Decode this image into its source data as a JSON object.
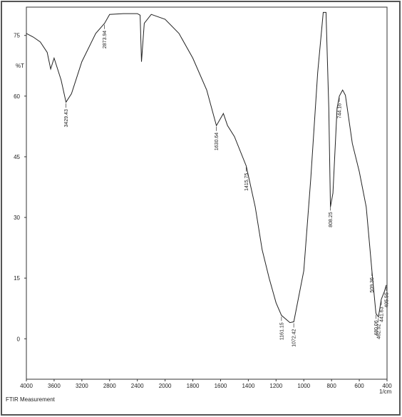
{
  "chart_data": {
    "type": "line",
    "xlabel": "1/cm",
    "ylabel": "%T",
    "note": "FTIR Measurement",
    "x": [
      4000,
      3900,
      3800,
      3700,
      3650,
      3600,
      3500,
      3429,
      3350,
      3200,
      3000,
      2873,
      2800,
      2600,
      2400,
      2360,
      2340,
      2300,
      2200,
      2000,
      1900,
      1800,
      1700,
      1630,
      1580,
      1550,
      1500,
      1415,
      1350,
      1300,
      1250,
      1200,
      1161,
      1100,
      1072,
      1000,
      950,
      900,
      860,
      840,
      820,
      808,
      790,
      760,
      744,
      720,
      700,
      650,
      600,
      550,
      509,
      480,
      462,
      441,
      420,
      405
    ],
    "values": [
      75.5,
      74.6,
      73.4,
      70.8,
      66.7,
      69.4,
      64,
      58.5,
      60.6,
      68.5,
      75.5,
      78,
      80.2,
      80.4,
      80.4,
      80,
      68.5,
      78,
      80.2,
      79,
      75.5,
      69.4,
      61.5,
      52.7,
      55.7,
      52.7,
      50,
      42.7,
      32.6,
      22,
      15,
      8.9,
      5.8,
      4,
      4.2,
      16.8,
      39.6,
      65.8,
      80.7,
      80.7,
      57,
      32.6,
      36,
      57,
      60,
      61.5,
      60.2,
      48.3,
      41.3,
      32.6,
      16.8,
      6.3,
      5.4,
      9.8,
      11.6,
      13.3
    ],
    "color": "#222222",
    "xlim": [
      4000,
      400
    ],
    "xticks": [
      4000,
      3600,
      3200,
      2800,
      2400,
      2000,
      1800,
      1600,
      1400,
      1200,
      1000,
      800,
      600,
      400
    ],
    "ylim": [
      -10,
      82
    ],
    "yticks": [
      0,
      15,
      30,
      45,
      60,
      75
    ],
    "annotations": [
      {
        "x": 3429.43,
        "label": "3429.43"
      },
      {
        "x": 2873.94,
        "label": "2873.94"
      },
      {
        "x": 1630.64,
        "label": "1630.64"
      },
      {
        "x": 1415.75,
        "label": "1415.75"
      },
      {
        "x": 1161.15,
        "label": "1161.15"
      },
      {
        "x": 1072.42,
        "label": "1072.42"
      },
      {
        "x": 808.25,
        "label": "808.25"
      },
      {
        "x": 744.16,
        "label": "744.16"
      },
      {
        "x": 509.36,
        "label": "509.36"
      },
      {
        "x": 480.06,
        "label": "480.06"
      },
      {
        "x": 462.92,
        "label": "462.92"
      },
      {
        "x": 441.63,
        "label": "441.63"
      },
      {
        "x": 405.55,
        "label": "405.55"
      }
    ]
  }
}
